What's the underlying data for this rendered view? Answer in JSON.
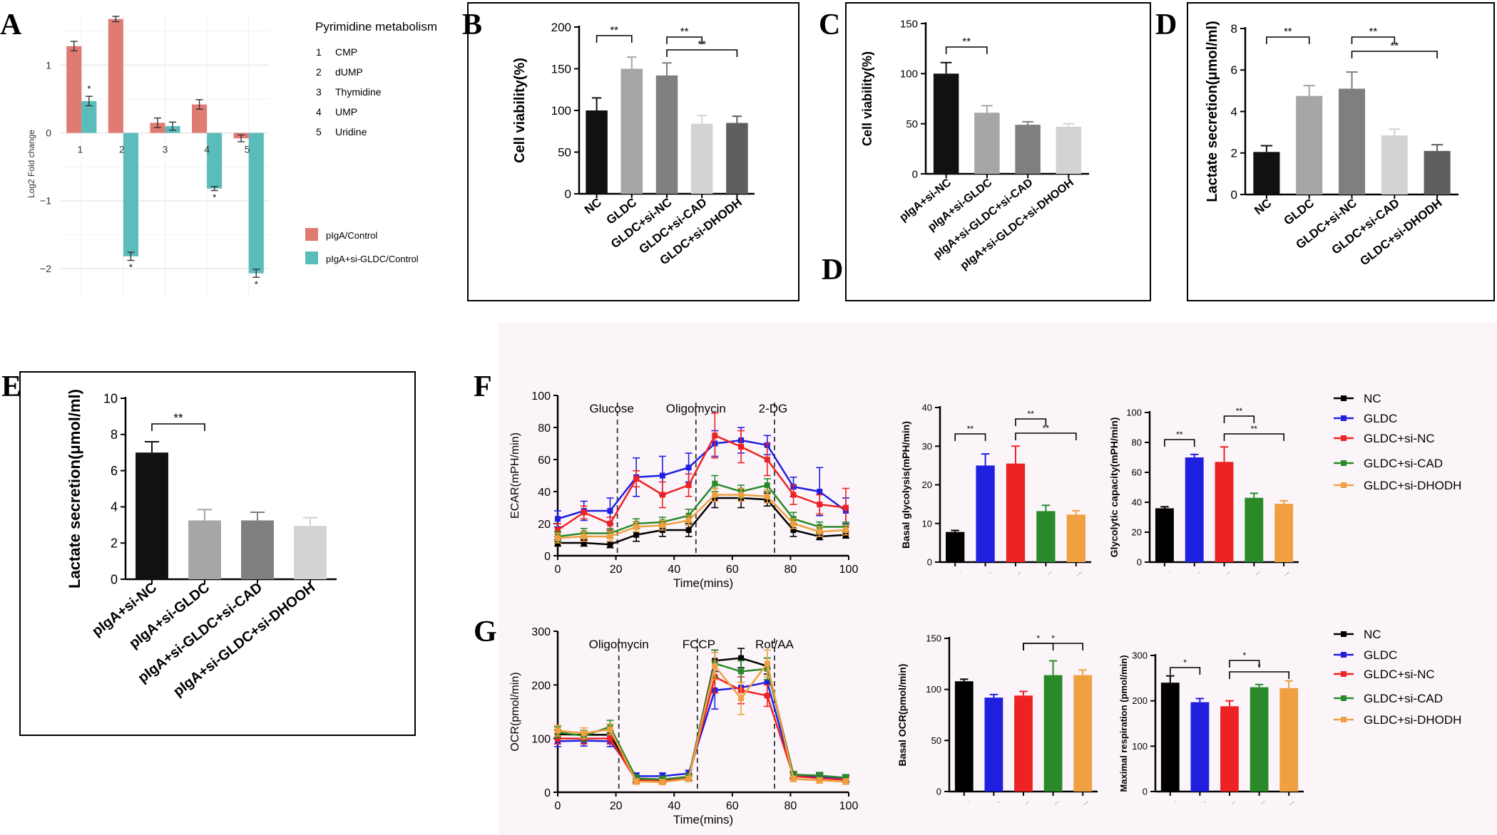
{
  "panel_labels": {
    "A": "A",
    "B": "B",
    "C": "C",
    "D": "D",
    "D2": "D",
    "E": "E",
    "F": "F",
    "G": "G"
  },
  "colors": {
    "pIgA_control": "#e07b74",
    "si_control": "#5bbcbc",
    "NC": "#000000",
    "GLDC": "#1f1fe0",
    "GLDC_si_NC": "#ee2222",
    "GLDC_si_CAD": "#2a8a2a",
    "GLDC_si_DHODH": "#f0a040",
    "bar_black": "#111111",
    "bar_gray1": "#a6a6a8",
    "bar_gray2": "#7f7f7f",
    "bar_gray3": "#d3d3d3",
    "bar_gray4": "#5f5f5f",
    "seahorse_bg": "#fbf5fa"
  },
  "panelA": {
    "legend_title": "Pyrimidine metabolism",
    "metabolites": [
      {
        "num": "1",
        "name": "CMP"
      },
      {
        "num": "2",
        "name": "dUMP"
      },
      {
        "num": "3",
        "name": "Thymidine"
      },
      {
        "num": "4",
        "name": "UMP"
      },
      {
        "num": "5",
        "name": "Uridine"
      }
    ],
    "series_legend": [
      "pIgA/Control",
      "pIgA+si-GLDC/Control"
    ]
  },
  "panelF": {
    "events": [
      "Glucose",
      "Oligomycin",
      "2-DG"
    ],
    "legend": [
      "NC",
      "GLDC",
      "GLDC+si-NC",
      "GLDC+si-CAD",
      "GLDC+si-DHODH"
    ]
  },
  "panelG": {
    "events": [
      "Oligomycin",
      "FCCP",
      "Rot/AA"
    ],
    "legend": [
      "NC",
      "GLDC",
      "GLDC+si-NC",
      "GLDC+si-CAD",
      "GLDC+si-DHODH"
    ]
  },
  "chart_data": [
    {
      "id": "A",
      "type": "bar",
      "ylabel": "Log2 Fold change",
      "ylim": [
        -2.4,
        1.75
      ],
      "categories": [
        "1",
        "2",
        "3",
        "4",
        "5"
      ],
      "series": [
        {
          "name": "pIgA/Control",
          "values": [
            1.28,
            1.68,
            0.15,
            0.42,
            -0.08
          ],
          "errors": [
            0.07,
            0.04,
            0.07,
            0.07,
            0.05
          ]
        },
        {
          "name": "pIgA+si-GLDC/Control",
          "values": [
            0.47,
            -1.82,
            0.1,
            -0.82,
            -2.07
          ],
          "errors": [
            0.07,
            0.06,
            0.06,
            0.03,
            0.06
          ]
        }
      ],
      "sig": [
        [
          0,
          1,
          "*"
        ],
        [
          1,
          1,
          "*"
        ],
        [
          3,
          1,
          "*"
        ],
        [
          4,
          1,
          "*"
        ]
      ]
    },
    {
      "id": "B",
      "type": "bar",
      "ylabel": "Cell viability(%)",
      "ylim": [
        0,
        200
      ],
      "yticks": [
        "0",
        "50",
        "100",
        "150",
        "200"
      ],
      "categories": [
        "NC",
        "GLDC",
        "GLDC+si-NC",
        "GLDC+si-CAD",
        "GLDC+si-DHODH"
      ],
      "values": [
        100,
        150,
        142,
        84,
        85
      ],
      "errors": [
        15,
        14,
        15,
        10,
        8
      ],
      "sig": [
        [
          0,
          1,
          "**"
        ],
        [
          2,
          3,
          "**"
        ],
        [
          2,
          4,
          "**"
        ]
      ]
    },
    {
      "id": "C",
      "type": "bar",
      "ylabel": "Cell viability(%)",
      "ylim": [
        0,
        150
      ],
      "yticks": [
        "0",
        "50",
        "100",
        "150"
      ],
      "categories": [
        "pIgA+si-NC",
        "pIgA+si-GLDC",
        "pIgA+si-GLDC+si-CAD",
        "pIgA+si-GLDC+si-DHOOH"
      ],
      "values": [
        100,
        61,
        49,
        47
      ],
      "errors": [
        11,
        7,
        3,
        3
      ],
      "sig": [
        [
          0,
          1,
          "**"
        ]
      ]
    },
    {
      "id": "D",
      "type": "bar",
      "ylabel": "Lactate secretion(μmol/ml)",
      "ylim": [
        0,
        8
      ],
      "yticks": [
        "0",
        "2",
        "4",
        "6",
        "8"
      ],
      "categories": [
        "NC",
        "GLDC",
        "GLDC+si-NC",
        "GLDC+si-CAD",
        "GLDC+si-DHODH"
      ],
      "values": [
        2.05,
        4.75,
        5.1,
        2.85,
        2.1
      ],
      "errors": [
        0.3,
        0.5,
        0.8,
        0.3,
        0.3
      ],
      "sig": [
        [
          0,
          1,
          "**"
        ],
        [
          2,
          3,
          "**"
        ],
        [
          2,
          4,
          "**"
        ]
      ]
    },
    {
      "id": "E",
      "type": "bar",
      "ylabel": "Lactate secretion(μmol/ml)",
      "ylim": [
        0,
        10
      ],
      "yticks": [
        "0",
        "2",
        "4",
        "6",
        "8",
        "10"
      ],
      "categories": [
        "pIgA+si-NC",
        "pIgA+si-GLDC",
        "pIgA+si-GLDC+si-CAD",
        "pIgA+si-GLDC+si-DHOOH"
      ],
      "values": [
        7.0,
        3.25,
        3.25,
        2.95
      ],
      "errors": [
        0.6,
        0.6,
        0.45,
        0.45
      ],
      "sig": [
        [
          0,
          1,
          "**"
        ]
      ]
    },
    {
      "id": "F1",
      "type": "line",
      "xlabel": "Time(mins)",
      "ylabel": "ECAR(mPH/min)",
      "xlim": [
        0,
        100
      ],
      "ylim": [
        0,
        100
      ],
      "xticks": [
        "0",
        "20",
        "40",
        "60",
        "80",
        "100"
      ],
      "yticks": [
        "0",
        "20",
        "40",
        "60",
        "80",
        "100"
      ],
      "x": [
        0,
        9,
        18,
        27,
        36,
        45,
        54,
        63,
        72,
        81,
        90,
        99
      ],
      "event_times": [
        20.5,
        47.5,
        74.5
      ],
      "series": [
        {
          "name": "NC",
          "values": [
            8,
            8,
            7,
            13,
            16,
            16,
            36,
            36,
            35,
            16,
            12,
            13
          ],
          "errors": [
            2,
            2,
            2,
            4,
            4,
            4,
            6,
            6,
            4,
            4,
            2,
            2
          ]
        },
        {
          "name": "GLDC",
          "values": [
            23,
            28,
            28,
            49,
            50,
            55,
            70,
            72,
            69,
            43,
            40,
            28
          ],
          "errors": [
            5,
            6,
            8,
            12,
            12,
            9,
            8,
            8,
            6,
            6,
            15,
            8
          ]
        },
        {
          "name": "GLDC+si-NC",
          "values": [
            16,
            27,
            20,
            48,
            38,
            44,
            75,
            68,
            60,
            38,
            32,
            30
          ],
          "errors": [
            4,
            4,
            4,
            5,
            8,
            7,
            14,
            10,
            10,
            6,
            6,
            12
          ]
        },
        {
          "name": "GLDC+si-CAD",
          "values": [
            12,
            14,
            14,
            20,
            21,
            25,
            45,
            40,
            44,
            23,
            18,
            18
          ],
          "errors": [
            3,
            3,
            3,
            3,
            3,
            4,
            5,
            4,
            4,
            4,
            3,
            3
          ]
        },
        {
          "name": "GLDC+si-DHODH",
          "values": [
            11,
            12,
            12,
            18,
            19,
            22,
            38,
            38,
            37,
            20,
            15,
            16
          ],
          "errors": [
            3,
            3,
            3,
            3,
            3,
            3,
            4,
            4,
            4,
            3,
            3,
            3
          ]
        }
      ]
    },
    {
      "id": "F2",
      "type": "bar",
      "ylabel": "Basal glycolysis(mPH/min)",
      "ylim": [
        0,
        40
      ],
      "yticks": [
        "0",
        "10",
        "20",
        "30",
        "40"
      ],
      "categories": [
        "NC",
        "GLDC",
        "GLDC+si-NC",
        "GLDC+si-CAD",
        "GLDC+si-DHODH"
      ],
      "values": [
        7.8,
        25,
        25.5,
        13.2,
        12.3
      ],
      "errors": [
        0.4,
        3,
        4.5,
        1.5,
        1
      ],
      "sig": [
        [
          0,
          1,
          "**"
        ],
        [
          2,
          3,
          "**"
        ],
        [
          2,
          4,
          "**"
        ]
      ]
    },
    {
      "id": "F3",
      "type": "bar",
      "ylabel": "Glycolytic capacity(mPH/min)",
      "ylim": [
        0,
        100
      ],
      "yticks": [
        "0",
        "20",
        "40",
        "60",
        "80",
        "100"
      ],
      "categories": [
        "NC",
        "GLDC",
        "GLDC+si-NC",
        "GLDC+si-CAD",
        "GLDC+si-DHODH"
      ],
      "values": [
        36,
        70,
        67,
        43,
        39
      ],
      "errors": [
        1,
        2,
        10,
        3,
        2
      ],
      "sig": [
        [
          0,
          1,
          "**"
        ],
        [
          2,
          3,
          "**"
        ],
        [
          2,
          4,
          "**"
        ]
      ]
    },
    {
      "id": "G1",
      "type": "line",
      "xlabel": "Time(mins)",
      "ylabel": "OCR(pmol/min)",
      "xlim": [
        0,
        100
      ],
      "ylim": [
        0,
        300
      ],
      "xticks": [
        "0",
        "20",
        "40",
        "60",
        "80",
        "100"
      ],
      "yticks": [
        "0",
        "100",
        "200",
        "300"
      ],
      "x": [
        0,
        9,
        18,
        27,
        36,
        45,
        54,
        63,
        72,
        81,
        90,
        99
      ],
      "event_times": [
        21,
        48,
        74.5
      ],
      "series": [
        {
          "name": "NC",
          "values": [
            108,
            107,
            107,
            25,
            24,
            28,
            245,
            250,
            235,
            32,
            30,
            25
          ],
          "errors": [
            8,
            8,
            8,
            6,
            6,
            6,
            20,
            18,
            15,
            6,
            6,
            6
          ]
        },
        {
          "name": "GLDC",
          "values": [
            95,
            96,
            95,
            30,
            30,
            35,
            190,
            195,
            205,
            30,
            28,
            25
          ],
          "errors": [
            10,
            10,
            10,
            6,
            6,
            6,
            35,
            30,
            25,
            6,
            6,
            6
          ]
        },
        {
          "name": "GLDC+si-NC",
          "values": [
            100,
            100,
            100,
            22,
            22,
            27,
            215,
            190,
            180,
            30,
            26,
            23
          ],
          "errors": [
            10,
            10,
            10,
            5,
            5,
            5,
            30,
            25,
            20,
            6,
            5,
            5
          ]
        },
        {
          "name": "GLDC+si-CAD",
          "values": [
            112,
            105,
            122,
            26,
            24,
            29,
            240,
            225,
            230,
            33,
            31,
            27
          ],
          "errors": [
            10,
            10,
            12,
            6,
            6,
            6,
            25,
            20,
            20,
            6,
            6,
            6
          ]
        },
        {
          "name": "GLDC+si-DHODH",
          "values": [
            115,
            110,
            117,
            20,
            19,
            25,
            235,
            175,
            240,
            25,
            22,
            20
          ],
          "errors": [
            10,
            10,
            10,
            5,
            5,
            5,
            25,
            30,
            25,
            5,
            5,
            5
          ]
        }
      ]
    },
    {
      "id": "G2",
      "type": "bar",
      "ylabel": "Basal OCR(pmol/min)",
      "ylim": [
        0,
        150
      ],
      "yticks": [
        "0",
        "50",
        "100",
        "150"
      ],
      "categories": [
        "NC",
        "GLDC",
        "GLDC+si-NC",
        "GLDC+si-CAD",
        "GLDC+si-DHODH"
      ],
      "values": [
        108,
        92,
        94,
        114,
        114
      ],
      "errors": [
        2,
        3,
        4,
        14,
        5
      ],
      "sig": [
        [
          2,
          3,
          "*"
        ],
        [
          2,
          4,
          "*"
        ]
      ]
    },
    {
      "id": "G3",
      "type": "bar",
      "ylabel": "Maximal respiration (pmol/min)",
      "ylim": [
        0,
        300
      ],
      "yticks": [
        "0",
        "100",
        "200",
        "300"
      ],
      "categories": [
        "NC",
        "GLDC",
        "GLDC+si-NC",
        "GLDC+si-CAD",
        "GLDC+si-DHODH"
      ],
      "values": [
        240,
        197,
        188,
        230,
        228
      ],
      "errors": [
        15,
        8,
        12,
        6,
        16
      ],
      "sig": [
        [
          0,
          1,
          "*"
        ],
        [
          2,
          3,
          "*"
        ],
        [
          2,
          4,
          "*"
        ]
      ]
    }
  ]
}
